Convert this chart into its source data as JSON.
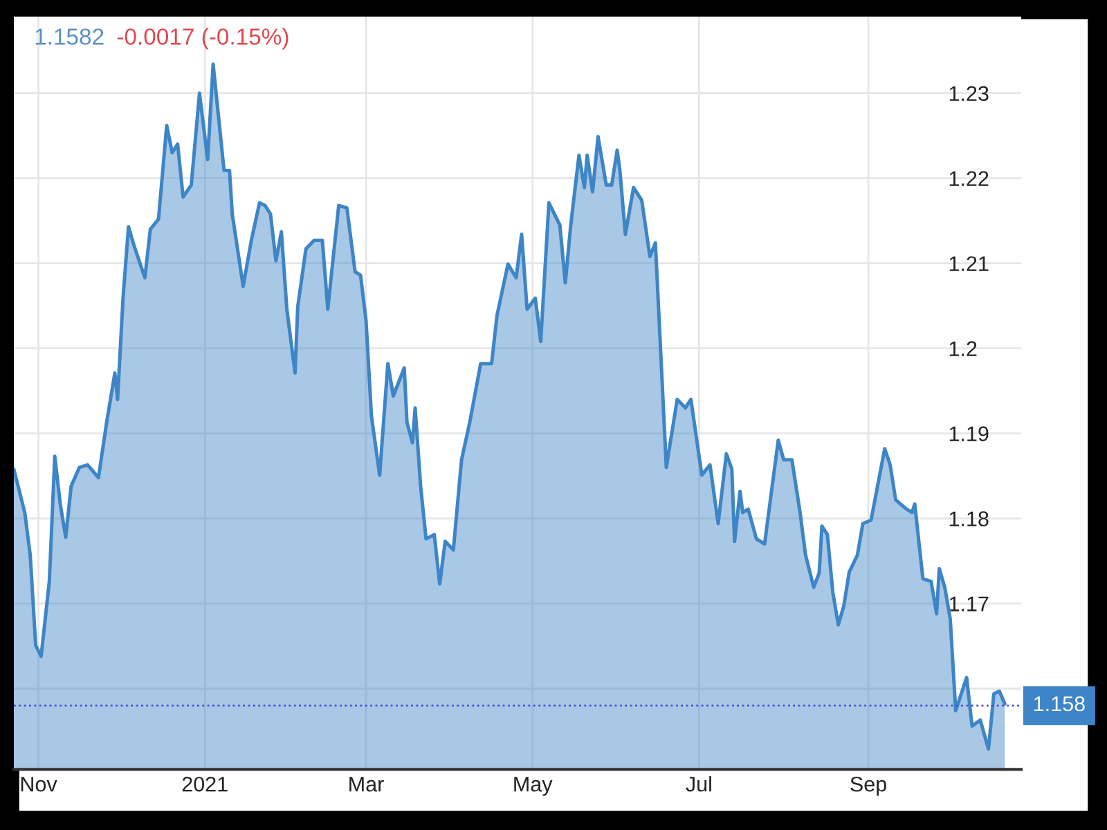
{
  "chart_data": {
    "type": "area",
    "annotations": [
      "1.1582",
      "-0.0017 (-0.15%)"
    ],
    "x": [
      "2020-10-23",
      "2020-10-27",
      "2020-10-29",
      "2020-10-31",
      "2020-11-02",
      "2020-11-05",
      "2020-11-07",
      "2020-11-09",
      "2020-11-11",
      "2020-11-13",
      "2020-11-16",
      "2020-11-19",
      "2020-11-23",
      "2020-11-26",
      "2020-11-29",
      "2020-11-30",
      "2020-12-02",
      "2020-12-04",
      "2020-12-06",
      "2020-12-10",
      "2020-12-12",
      "2020-12-15",
      "2020-12-18",
      "2020-12-20",
      "2020-12-22",
      "2020-12-24",
      "2020-12-27",
      "2020-12-30",
      "2021-01-02",
      "2021-01-04",
      "2021-01-08",
      "2021-01-10",
      "2021-01-11",
      "2021-01-15",
      "2021-01-18",
      "2021-01-21",
      "2021-01-23",
      "2021-01-25",
      "2021-01-27",
      "2021-01-29",
      "2021-01-31",
      "2021-02-03",
      "2021-02-04",
      "2021-02-07",
      "2021-02-10",
      "2021-02-13",
      "2021-02-15",
      "2021-02-19",
      "2021-02-22",
      "2021-02-25",
      "2021-02-27",
      "2021-03-01",
      "2021-03-03",
      "2021-03-06",
      "2021-03-09",
      "2021-03-11",
      "2021-03-15",
      "2021-03-16",
      "2021-03-18",
      "2021-03-19",
      "2021-03-21",
      "2021-03-23",
      "2021-03-26",
      "2021-03-28",
      "2021-03-30",
      "2021-04-02",
      "2021-04-05",
      "2021-04-08",
      "2021-04-12",
      "2021-04-16",
      "2021-04-18",
      "2021-04-22",
      "2021-04-25",
      "2021-04-27",
      "2021-04-29",
      "2021-05-02",
      "2021-05-04",
      "2021-05-07",
      "2021-05-11",
      "2021-05-13",
      "2021-05-15",
      "2021-05-18",
      "2021-05-20",
      "2021-05-21",
      "2021-05-23",
      "2021-05-25",
      "2021-05-28",
      "2021-05-30",
      "2021-06-01",
      "2021-06-02",
      "2021-06-04",
      "2021-06-07",
      "2021-06-10",
      "2021-06-13",
      "2021-06-15",
      "2021-06-19",
      "2021-06-23",
      "2021-06-26",
      "2021-06-28",
      "2021-07-02",
      "2021-07-05",
      "2021-07-08",
      "2021-07-11",
      "2021-07-13",
      "2021-07-14",
      "2021-07-16",
      "2021-07-17",
      "2021-07-19",
      "2021-07-22",
      "2021-07-25",
      "2021-07-30",
      "2021-08-01",
      "2021-08-04",
      "2021-08-07",
      "2021-08-09",
      "2021-08-12",
      "2021-08-14",
      "2021-08-15",
      "2021-08-17",
      "2021-08-19",
      "2021-08-21",
      "2021-08-23",
      "2021-08-25",
      "2021-08-28",
      "2021-08-30",
      "2021-09-02",
      "2021-09-07",
      "2021-09-09",
      "2021-09-11",
      "2021-09-15",
      "2021-09-17",
      "2021-09-18",
      "2021-09-21",
      "2021-09-24",
      "2021-09-26",
      "2021-09-27",
      "2021-09-29",
      "2021-10-01",
      "2021-10-03",
      "2021-10-07",
      "2021-10-09",
      "2021-10-12",
      "2021-10-15",
      "2021-10-17",
      "2021-10-19",
      "2021-10-21"
    ],
    "series": [
      {
        "color": "#3d85c6",
        "values": [
          1.1858,
          1.1807,
          1.1757,
          1.1651,
          1.1638,
          1.1726,
          1.1873,
          1.1817,
          1.1778,
          1.1838,
          1.186,
          1.1863,
          1.1848,
          1.1913,
          1.1971,
          1.194,
          1.2059,
          1.2143,
          1.2121,
          1.2083,
          1.214,
          1.2152,
          1.2262,
          1.223,
          1.224,
          1.2178,
          1.2192,
          1.23,
          1.2222,
          1.2334,
          1.2209,
          1.2209,
          1.2158,
          1.2073,
          1.2127,
          1.2171,
          1.2168,
          1.2158,
          1.2103,
          1.2137,
          1.2046,
          1.1971,
          1.2049,
          1.2117,
          1.2127,
          1.2127,
          1.2046,
          1.2168,
          1.2165,
          1.209,
          1.2086,
          1.2033,
          1.192,
          1.1851,
          1.1982,
          1.1944,
          1.1977,
          1.1913,
          1.1889,
          1.193,
          1.1838,
          1.1776,
          1.1781,
          1.1723,
          1.1773,
          1.1763,
          1.1869,
          1.1913,
          1.1982,
          1.1982,
          1.2039,
          1.2099,
          1.2083,
          1.2134,
          1.2046,
          1.2059,
          1.2008,
          1.2171,
          1.2145,
          1.2077,
          1.2145,
          1.2227,
          1.2189,
          1.2227,
          1.2184,
          1.2249,
          1.2192,
          1.2192,
          1.2233,
          1.2209,
          1.2134,
          1.2189,
          1.2174,
          1.2108,
          1.2124,
          1.186,
          1.194,
          1.193,
          1.194,
          1.1851,
          1.1863,
          1.1794,
          1.1876,
          1.1858,
          1.1773,
          1.1832,
          1.1807,
          1.1811,
          1.1776,
          1.177,
          1.1892,
          1.1869,
          1.1869,
          1.1807,
          1.1757,
          1.1719,
          1.1736,
          1.1791,
          1.1781,
          1.1713,
          1.1675,
          1.1697,
          1.1737,
          1.1757,
          1.1794,
          1.1798,
          1.1882,
          1.1863,
          1.1822,
          1.1811,
          1.1807,
          1.1817,
          1.1729,
          1.1726,
          1.1688,
          1.1741,
          1.1719,
          1.1682,
          1.1574,
          1.1613,
          1.1556,
          1.1563,
          1.1529,
          1.1594,
          1.1597,
          1.1582
        ]
      }
    ],
    "xlim": [
      "2020-10-23",
      "2021-10-27"
    ],
    "xticks": [
      {
        "value": "2020-11-01",
        "label": "Nov"
      },
      {
        "value": "2021-01-01",
        "label": "2021"
      },
      {
        "value": "2021-03-01",
        "label": "Mar"
      },
      {
        "value": "2021-05-01",
        "label": "May"
      },
      {
        "value": "2021-07-01",
        "label": "Jul"
      },
      {
        "value": "2021-09-01",
        "label": "Sep"
      }
    ],
    "ylim": [
      1.1505,
      1.239
    ],
    "yticks": [
      {
        "value": 1.16,
        "label": null
      },
      1.17,
      1.18,
      1.19,
      1.2,
      1.21,
      1.22,
      1.23
    ],
    "ref_lines": [
      {
        "axis": "y",
        "value": 1.158,
        "label": "1.158",
        "color": "#4a4ad8",
        "line_style": "dotted"
      }
    ],
    "grid": true,
    "legend": false
  }
}
